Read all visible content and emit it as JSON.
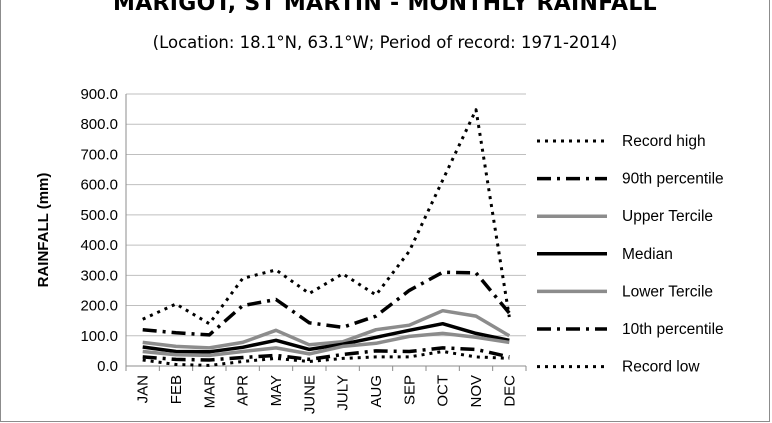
{
  "chart_data": {
    "type": "line",
    "title": "MARIGOT, ST MARTIN - MONTHLY RAINFALL",
    "subtitle": "(Location: 18.1°N, 63.1°W; Period of record: 1971-2014)",
    "xlabel": "",
    "ylabel": "RAINFALL (mm)",
    "ylim": [
      0,
      900
    ],
    "yticks": [
      "0.0",
      "100.0",
      "200.0",
      "300.0",
      "400.0",
      "500.0",
      "600.0",
      "700.0",
      "800.0",
      "900.0"
    ],
    "categories": [
      "JAN",
      "FEB",
      "MAR",
      "APR",
      "MAY",
      "JUNE",
      "JULY",
      "AUG",
      "SEP",
      "OCT",
      "NOV",
      "DEC"
    ],
    "grid": "horizontal",
    "legend": "right",
    "series": [
      {
        "name": "Record high",
        "color": "#000000",
        "style": "dotted",
        "width": 3,
        "values": [
          155,
          205,
          140,
          290,
          318,
          240,
          305,
          235,
          380,
          615,
          848,
          162
        ]
      },
      {
        "name": "90th percentile",
        "color": "#000000",
        "style": "dashdot",
        "width": 3.5,
        "values": [
          120,
          110,
          103,
          200,
          220,
          143,
          128,
          165,
          250,
          310,
          308,
          175
        ]
      },
      {
        "name": "Upper Tercile",
        "color": "#8c8c8c",
        "style": "solid",
        "width": 3.5,
        "values": [
          78,
          65,
          60,
          78,
          118,
          70,
          80,
          120,
          135,
          183,
          165,
          100
        ]
      },
      {
        "name": "Median",
        "color": "#000000",
        "style": "solid",
        "width": 3.5,
        "values": [
          63,
          48,
          47,
          62,
          85,
          55,
          72,
          95,
          118,
          140,
          108,
          85
        ]
      },
      {
        "name": "Lower Tercile",
        "color": "#8c8c8c",
        "style": "solid",
        "width": 3.5,
        "values": [
          48,
          37,
          35,
          48,
          60,
          40,
          65,
          75,
          98,
          108,
          95,
          78
        ]
      },
      {
        "name": "10th percentile",
        "color": "#000000",
        "style": "dashdot",
        "width": 3.5,
        "values": [
          30,
          22,
          20,
          28,
          35,
          22,
          38,
          50,
          48,
          60,
          55,
          30
        ]
      },
      {
        "name": "Record low",
        "color": "#000000",
        "style": "dotted",
        "width": 3,
        "values": [
          20,
          5,
          2,
          15,
          25,
          15,
          25,
          30,
          30,
          48,
          30,
          25
        ]
      }
    ]
  }
}
